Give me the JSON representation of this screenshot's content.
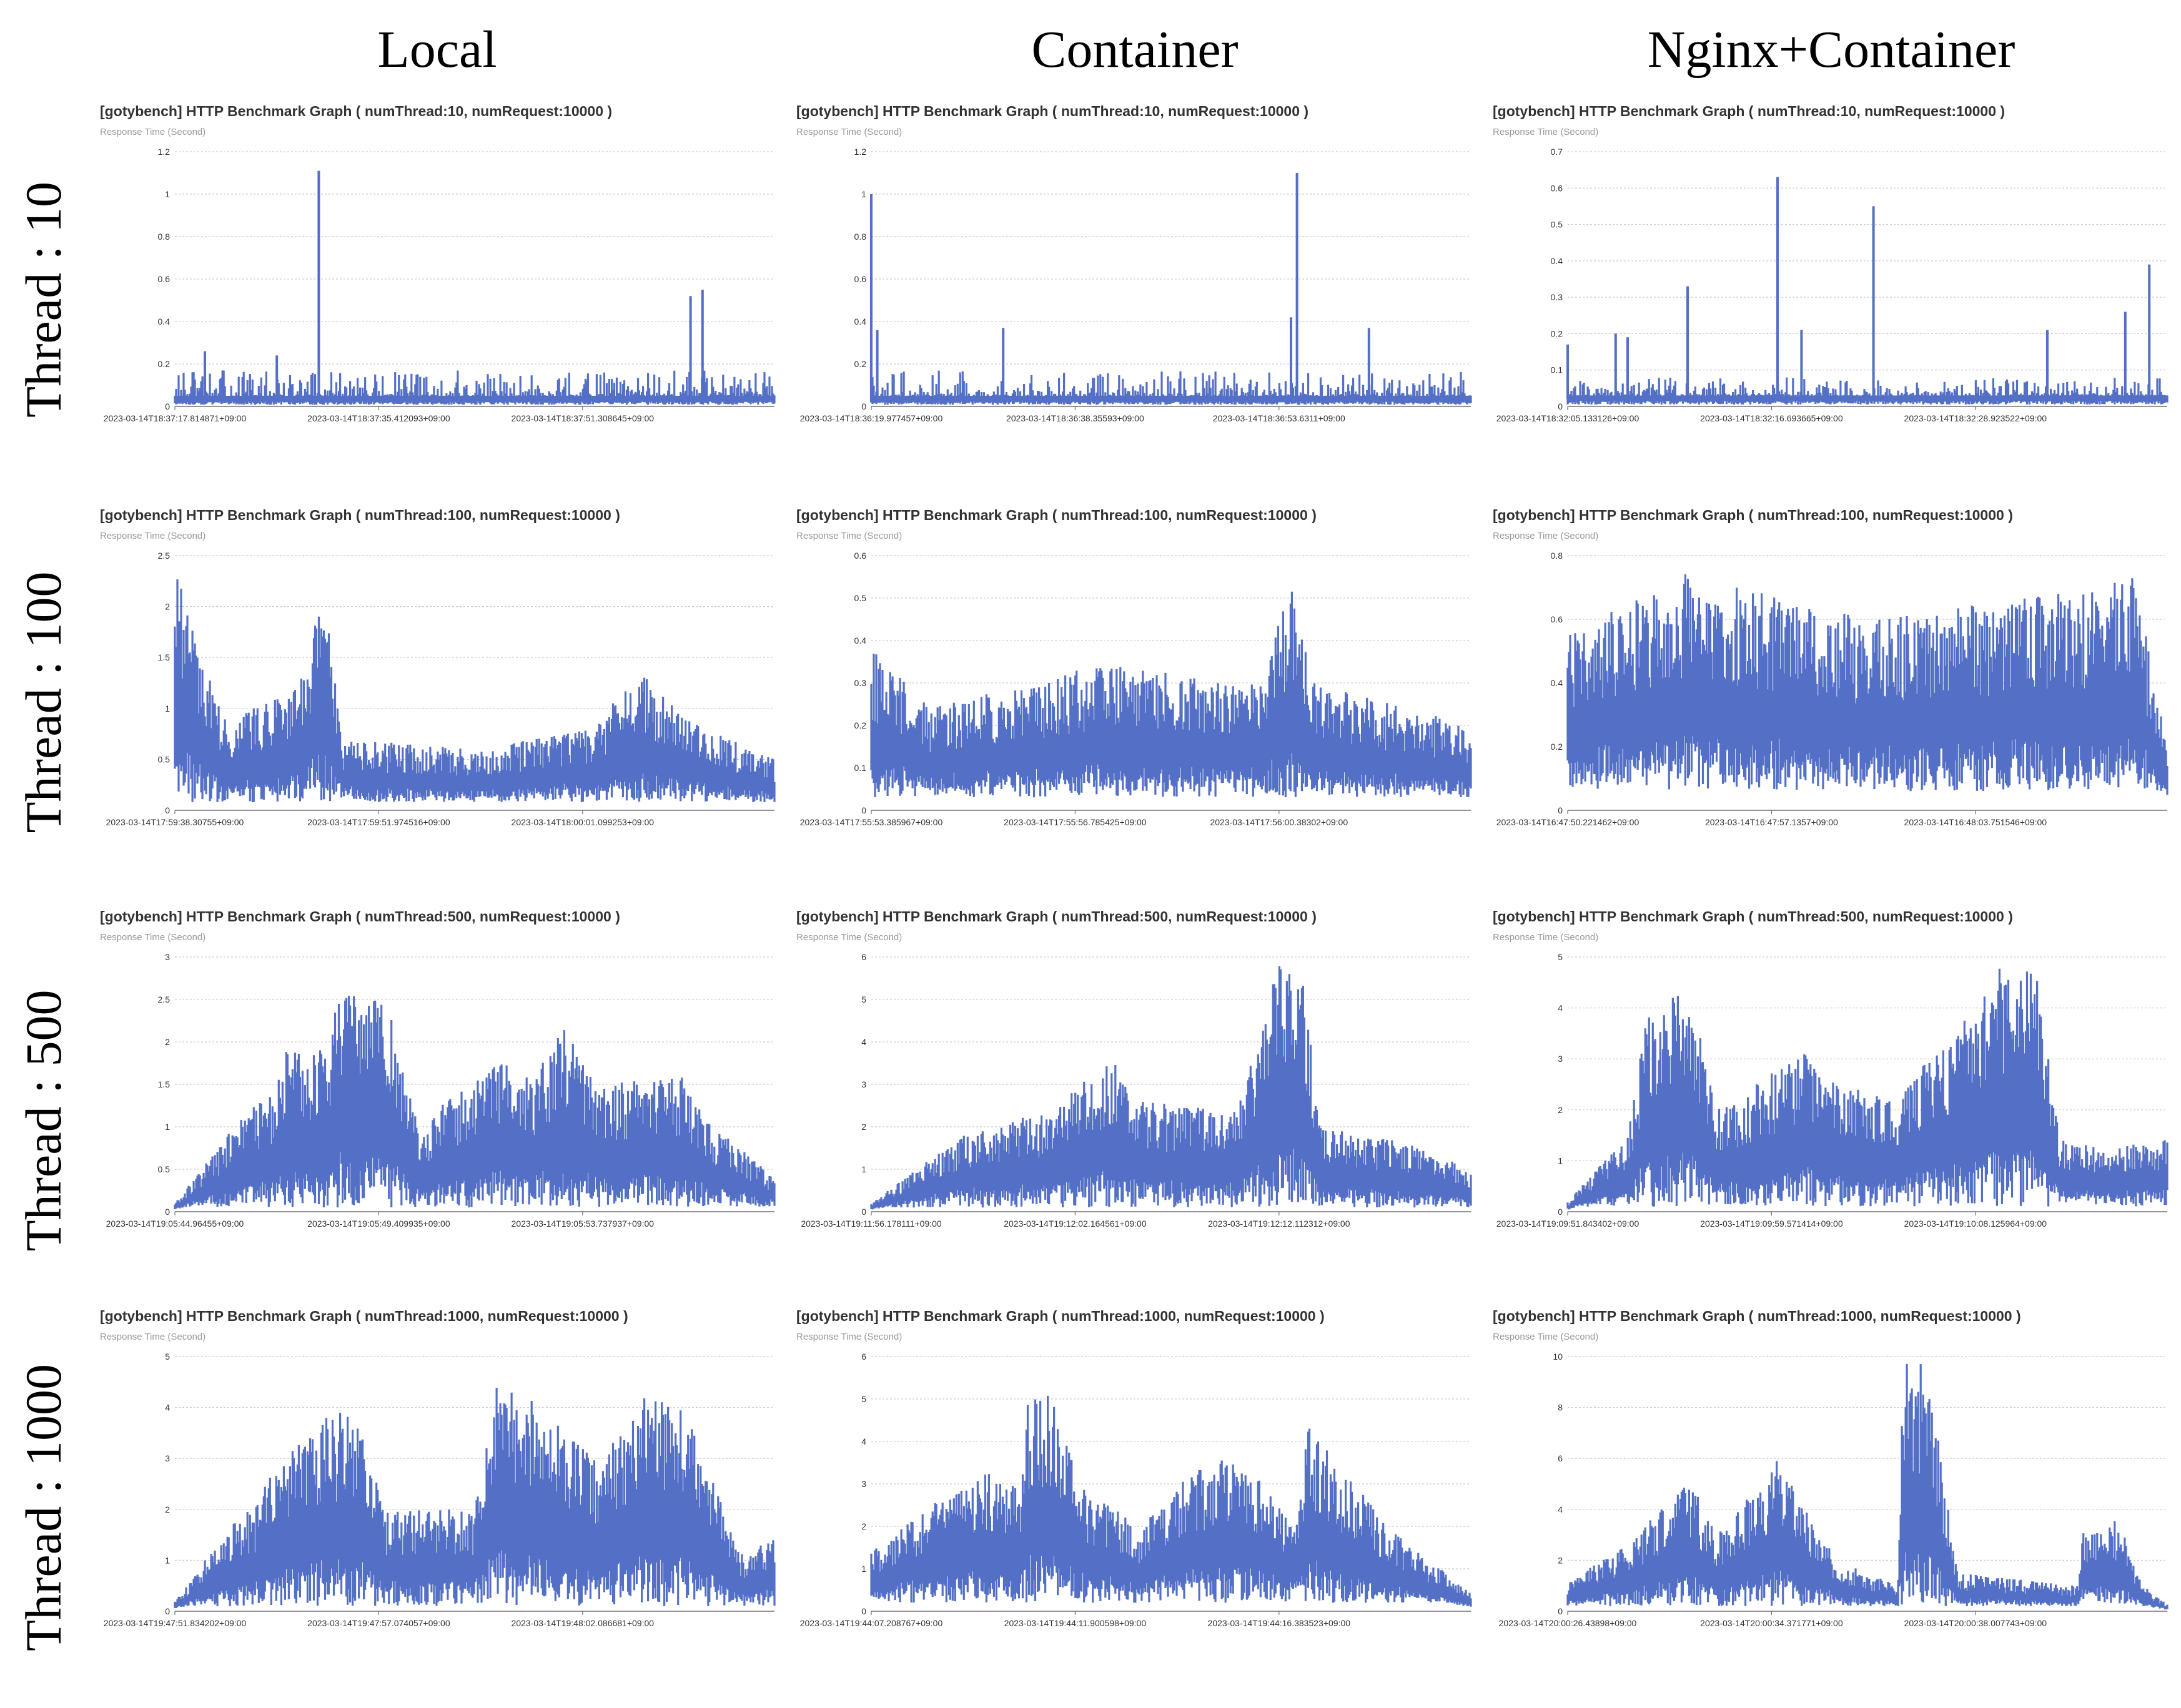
{
  "columns": [
    "Local",
    "Container",
    "Nginx+Container"
  ],
  "rows": [
    "Thread : 10",
    "Thread : 100",
    "Thread : 500",
    "Thread : 1000"
  ],
  "colors": {
    "series": "#5470c6",
    "grid": "#cccccc",
    "axis": "#6e7079"
  },
  "chart_data": [
    {
      "type": "area",
      "row": 0,
      "col": 0,
      "title": "[gotybench] HTTP Benchmark Graph ( numThread:10, numRequest:10000 )",
      "ylabel": "Response Time (Second)",
      "ylim": [
        0,
        1.2
      ],
      "yticks": [
        "0",
        "0.2",
        "0.4",
        "0.6",
        "0.8",
        "1",
        "1.2"
      ],
      "xticks": [
        "2023-03-14T18:37:17.814871+09:00",
        "2023-03-14T18:37:35.412093+09:00",
        "2023-03-14T18:37:51.308645+09:00"
      ],
      "series": [
        {
          "base": 0.05,
          "noise": 0.12,
          "lows": 0.015,
          "spikes": [
            [
              0.24,
              1.11
            ],
            [
              0.86,
              0.52
            ],
            [
              0.88,
              0.55
            ],
            [
              0.05,
              0.26
            ],
            [
              0.17,
              0.24
            ]
          ]
        }
      ]
    },
    {
      "type": "area",
      "row": 0,
      "col": 1,
      "title": "[gotybench] HTTP Benchmark Graph ( numThread:10, numRequest:10000 )",
      "ylabel": "Response Time (Second)",
      "ylim": [
        0,
        1.2
      ],
      "yticks": [
        "0",
        "0.2",
        "0.4",
        "0.6",
        "0.8",
        "1",
        "1.2"
      ],
      "xticks": [
        "2023-03-14T18:36:19.977457+09:00",
        "2023-03-14T18:36:38.35593+09:00",
        "2023-03-14T18:36:53.6311+09:00"
      ],
      "series": [
        {
          "base": 0.05,
          "noise": 0.12,
          "lows": 0.015,
          "spikes": [
            [
              0.0,
              1.0
            ],
            [
              0.01,
              0.36
            ],
            [
              0.22,
              0.37
            ],
            [
              0.71,
              1.1
            ],
            [
              0.7,
              0.42
            ],
            [
              0.83,
              0.37
            ]
          ]
        }
      ]
    },
    {
      "type": "area",
      "row": 0,
      "col": 2,
      "title": "[gotybench] HTTP Benchmark Graph ( numThread:10, numRequest:10000 )",
      "ylabel": "Response Time (Second)",
      "ylim": [
        0,
        0.7
      ],
      "yticks": [
        "0",
        "0.1",
        "0.2",
        "0.3",
        "0.4",
        "0.5",
        "0.6",
        "0.7"
      ],
      "xticks": [
        "2023-03-14T18:32:05.133126+09:00",
        "2023-03-14T18:32:16.693665+09:00",
        "2023-03-14T18:32:28.923522+09:00"
      ],
      "series": [
        {
          "base": 0.03,
          "noise": 0.05,
          "lows": 0.01,
          "spikes": [
            [
              0.0,
              0.17
            ],
            [
              0.08,
              0.2
            ],
            [
              0.1,
              0.19
            ],
            [
              0.2,
              0.33
            ],
            [
              0.35,
              0.63
            ],
            [
              0.39,
              0.21
            ],
            [
              0.51,
              0.55
            ],
            [
              0.8,
              0.21
            ],
            [
              0.93,
              0.26
            ],
            [
              0.97,
              0.39
            ]
          ]
        }
      ]
    },
    {
      "type": "area",
      "row": 1,
      "col": 0,
      "title": "[gotybench] HTTP Benchmark Graph ( numThread:100, numRequest:10000 )",
      "ylabel": "Response Time (Second)",
      "ylim": [
        0,
        2.5
      ],
      "yticks": [
        "0",
        "0.5",
        "1",
        "1.5",
        "2",
        "2.5"
      ],
      "xticks": [
        "2023-03-14T17:59:38.30755+09:00",
        "2023-03-14T17:59:51.974516+09:00",
        "2023-03-14T18:00:01.099253+09:00"
      ],
      "series": [
        {
          "base": 0.4,
          "noise": 0.9,
          "lows": 0.08,
          "envelope": [
            [
              0,
              2.4
            ],
            [
              0.03,
              1.8
            ],
            [
              0.08,
              0.9
            ],
            [
              0.2,
              1.2
            ],
            [
              0.25,
              2.2
            ],
            [
              0.28,
              0.7
            ],
            [
              0.5,
              0.6
            ],
            [
              0.7,
              0.8
            ],
            [
              0.77,
              1.4
            ],
            [
              0.85,
              0.9
            ],
            [
              1,
              0.5
            ]
          ]
        }
      ]
    },
    {
      "type": "area",
      "row": 1,
      "col": 1,
      "title": "[gotybench] HTTP Benchmark Graph ( numThread:100, numRequest:10000 )",
      "ylabel": "Response Time (Second)",
      "ylim": [
        0,
        0.6
      ],
      "yticks": [
        "0",
        "0.1",
        "0.2",
        "0.3",
        "0.4",
        "0.5",
        "0.6"
      ],
      "xticks": [
        "2023-03-14T17:55:53.385967+09:00",
        "2023-03-14T17:55:56.785425+09:00",
        "2023-03-14T17:56:00.38302+09:00"
      ],
      "series": [
        {
          "base": 0.1,
          "noise": 0.22,
          "lows": 0.03,
          "envelope": [
            [
              0,
              0.38
            ],
            [
              0.1,
              0.24
            ],
            [
              0.4,
              0.35
            ],
            [
              0.65,
              0.3
            ],
            [
              0.7,
              0.54
            ],
            [
              0.74,
              0.3
            ],
            [
              1,
              0.2
            ]
          ]
        }
      ]
    },
    {
      "type": "area",
      "row": 1,
      "col": 2,
      "title": "[gotybench] HTTP Benchmark Graph ( numThread:100, numRequest:10000 )",
      "ylabel": "Response Time (Second)",
      "ylim": [
        0,
        0.8
      ],
      "yticks": [
        "0",
        "0.2",
        "0.4",
        "0.6",
        "0.8"
      ],
      "xticks": [
        "2023-03-14T16:47:50.221462+09:00",
        "2023-03-14T16:47:57.1357+09:00",
        "2023-03-14T16:48:03.751546+09:00"
      ],
      "series": [
        {
          "base": 0.2,
          "noise": 0.45,
          "lows": 0.06,
          "envelope": [
            [
              0,
              0.55
            ],
            [
              0.2,
              0.75
            ],
            [
              0.5,
              0.6
            ],
            [
              0.9,
              0.7
            ],
            [
              0.94,
              0.76
            ],
            [
              1,
              0.25
            ]
          ]
        }
      ]
    },
    {
      "type": "area",
      "row": 2,
      "col": 0,
      "title": "[gotybench] HTTP Benchmark Graph ( numThread:500, numRequest:10000 )",
      "ylabel": "Response Time (Second)",
      "ylim": [
        0,
        3
      ],
      "yticks": [
        "0",
        "0.5",
        "1",
        "1.5",
        "2",
        "2.5",
        "3"
      ],
      "xticks": [
        "2023-03-14T19:05:44.96455+09:00",
        "2023-03-14T19:05:49.409935+09:00",
        "2023-03-14T19:05:53.737937+09:00"
      ],
      "series": [
        {
          "base": 0.35,
          "noise": 0.45,
          "lows": 0.05,
          "envelope": [
            [
              0,
              0.1
            ],
            [
              0.12,
              1.2
            ],
            [
              0.17,
              1.4
            ],
            [
              0.18,
              1.95
            ],
            [
              0.26,
              1.9
            ],
            [
              0.27,
              2.6
            ],
            [
              0.35,
              2.6
            ],
            [
              0.41,
              0.9
            ],
            [
              0.45,
              1.3
            ],
            [
              0.55,
              1.8
            ],
            [
              0.6,
              1.6
            ],
            [
              0.65,
              2.2
            ],
            [
              0.7,
              1.5
            ],
            [
              0.85,
              1.6
            ],
            [
              0.9,
              1.0
            ],
            [
              1,
              0.4
            ]
          ]
        }
      ]
    },
    {
      "type": "area",
      "row": 2,
      "col": 1,
      "title": "[gotybench] HTTP Benchmark Graph ( numThread:500, numRequest:10000 )",
      "ylabel": "Response Time (Second)",
      "ylim": [
        0,
        6
      ],
      "yticks": [
        "0",
        "1",
        "2",
        "3",
        "4",
        "5",
        "6"
      ],
      "xticks": [
        "2023-03-14T19:11:56.178111+09:00",
        "2023-03-14T19:12:02.164561+09:00",
        "2023-03-14T19:12:12.112312+09:00"
      ],
      "series": [
        {
          "base": 0.6,
          "noise": 0.8,
          "lows": 0.1,
          "envelope": [
            [
              0,
              0.2
            ],
            [
              0.15,
              1.8
            ],
            [
              0.3,
              2.4
            ],
            [
              0.35,
              3.0
            ],
            [
              0.4,
              3.7
            ],
            [
              0.45,
              2.6
            ],
            [
              0.6,
              2.4
            ],
            [
              0.62,
              2.8
            ],
            [
              0.66,
              5.0
            ],
            [
              0.68,
              5.8
            ],
            [
              0.72,
              5.5
            ],
            [
              0.75,
              2.0
            ],
            [
              0.9,
              1.6
            ],
            [
              1,
              1.0
            ]
          ]
        }
      ]
    },
    {
      "type": "area",
      "row": 2,
      "col": 2,
      "title": "[gotybench] HTTP Benchmark Graph ( numThread:500, numRequest:10000 )",
      "ylabel": "Response Time (Second)",
      "ylim": [
        0,
        5
      ],
      "yticks": [
        "0",
        "1",
        "2",
        "3",
        "4",
        "5"
      ],
      "xticks": [
        "2023-03-14T19:09:51.843402+09:00",
        "2023-03-14T19:09:59.571414+09:00",
        "2023-03-14T19:10:08.125964+09:00"
      ],
      "series": [
        {
          "base": 0.6,
          "noise": 0.7,
          "lows": 0.1,
          "envelope": [
            [
              0,
              0.2
            ],
            [
              0.1,
              1.5
            ],
            [
              0.13,
              3.8
            ],
            [
              0.2,
              4.5
            ],
            [
              0.25,
              2.0
            ],
            [
              0.4,
              3.2
            ],
            [
              0.45,
              2.5
            ],
            [
              0.55,
              2.3
            ],
            [
              0.68,
              4.0
            ],
            [
              0.72,
              4.8
            ],
            [
              0.78,
              4.8
            ],
            [
              0.82,
              1.5
            ],
            [
              0.9,
              1.2
            ],
            [
              1,
              1.5
            ]
          ]
        }
      ]
    },
    {
      "type": "area",
      "row": 3,
      "col": 0,
      "title": "[gotybench] HTTP Benchmark Graph ( numThread:1000, numRequest:10000 )",
      "ylabel": "Response Time (Second)",
      "ylim": [
        0,
        5
      ],
      "yticks": [
        "0",
        "1",
        "2",
        "3",
        "4",
        "5"
      ],
      "xticks": [
        "2023-03-14T19:47:51.834202+09:00",
        "2023-03-14T19:47:57.074057+09:00",
        "2023-03-14T19:48:02.086681+09:00"
      ],
      "series": [
        {
          "base": 0.8,
          "noise": 1.1,
          "lows": 0.1,
          "envelope": [
            [
              0,
              0.2
            ],
            [
              0.1,
              1.8
            ],
            [
              0.14,
              2.1
            ],
            [
              0.15,
              2.5
            ],
            [
              0.24,
              3.8
            ],
            [
              0.3,
              4.0
            ],
            [
              0.35,
              2.0
            ],
            [
              0.5,
              2.0
            ],
            [
              0.53,
              4.4
            ],
            [
              0.58,
              4.3
            ],
            [
              0.7,
              3.0
            ],
            [
              0.78,
              4.2
            ],
            [
              0.85,
              4.0
            ],
            [
              0.95,
              1.0
            ],
            [
              1,
              1.6
            ]
          ]
        }
      ]
    },
    {
      "type": "area",
      "row": 3,
      "col": 1,
      "title": "[gotybench] HTTP Benchmark Graph ( numThread:1000, numRequest:10000 )",
      "ylabel": "Response Time (Second)",
      "ylim": [
        0,
        6
      ],
      "yticks": [
        "0",
        "1",
        "2",
        "3",
        "4",
        "5",
        "6"
      ],
      "xticks": [
        "2023-03-14T19:44:07.208767+09:00",
        "2023-03-14T19:44:11.900598+09:00",
        "2023-03-14T19:44:16.383523+09:00"
      ],
      "series": [
        {
          "base": 0.9,
          "noise": 1.3,
          "lows": 0.2,
          "envelope": [
            [
              0,
              1.4
            ],
            [
              0.1,
              2.5
            ],
            [
              0.2,
              3.4
            ],
            [
              0.25,
              2.8
            ],
            [
              0.26,
              5.2
            ],
            [
              0.3,
              5.2
            ],
            [
              0.35,
              3.0
            ],
            [
              0.45,
              2.0
            ],
            [
              0.5,
              3.0
            ],
            [
              0.58,
              3.6
            ],
            [
              0.65,
              3.2
            ],
            [
              0.7,
              2.0
            ],
            [
              0.73,
              4.4
            ],
            [
              0.78,
              3.4
            ],
            [
              0.9,
              1.5
            ],
            [
              1,
              0.5
            ]
          ]
        }
      ]
    },
    {
      "type": "area",
      "row": 3,
      "col": 2,
      "title": "[gotybench] HTTP Benchmark Graph ( numThread:1000, numRequest:10000 )",
      "ylabel": "Response Time (Second)",
      "ylim": [
        0,
        10
      ],
      "yticks": [
        "0",
        "2",
        "4",
        "6",
        "8",
        "10"
      ],
      "xticks": [
        "2023-03-14T20:00:26.43898+09:00",
        "2023-03-14T20:00:34.371771+09:00",
        "2023-03-14T20:00:38.007743+09:00"
      ],
      "series": [
        {
          "base": 1.0,
          "noise": 1.5,
          "lows": 0.2,
          "envelope": [
            [
              0,
              1.2
            ],
            [
              0.1,
              2.6
            ],
            [
              0.2,
              5.3
            ],
            [
              0.25,
              3.0
            ],
            [
              0.35,
              6.0
            ],
            [
              0.45,
              2.0
            ],
            [
              0.55,
              1.0
            ],
            [
              0.56,
              9.8
            ],
            [
              0.6,
              9.8
            ],
            [
              0.65,
              1.5
            ],
            [
              0.85,
              1.0
            ],
            [
              0.86,
              3.2
            ],
            [
              0.92,
              3.6
            ],
            [
              0.96,
              1.0
            ],
            [
              1,
              0.3
            ]
          ]
        }
      ]
    }
  ]
}
